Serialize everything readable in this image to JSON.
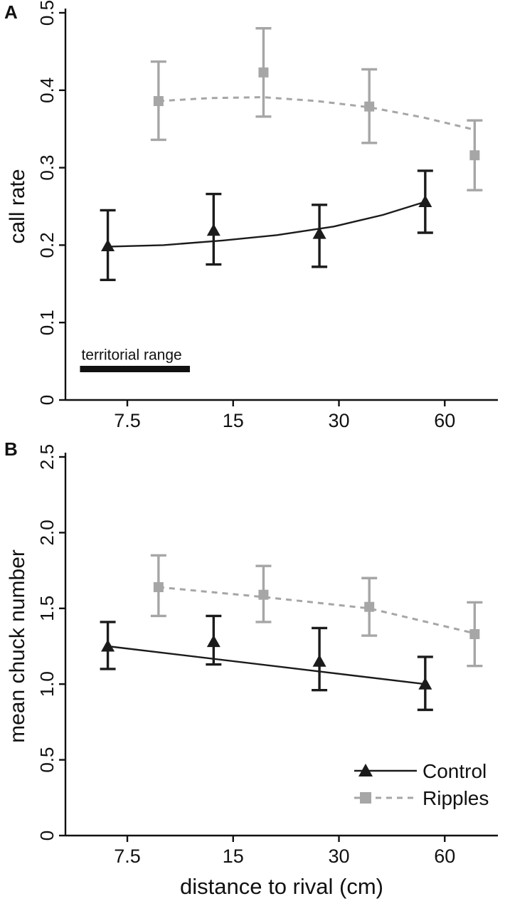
{
  "figure": {
    "panels": [
      {
        "letter": "A"
      },
      {
        "letter": "B"
      }
    ],
    "xlabel": "distance to rival (cm)",
    "colors": {
      "control": "#1b1b1b",
      "ripples": "#a6a6a6",
      "axis": "#111111"
    }
  },
  "chart_data": [
    {
      "type": "scatter",
      "panel": "A",
      "title": "",
      "xlabel": "distance to rival (cm)",
      "ylabel": "call rate",
      "x_scale": "log",
      "xlim": [
        5,
        85
      ],
      "xticks": [
        7.5,
        15,
        30,
        60
      ],
      "xtick_labels": [
        "7.5",
        "15",
        "30",
        "60"
      ],
      "ylim": [
        0,
        0.5
      ],
      "yticks": [
        0,
        0.1,
        0.2,
        0.3,
        0.4,
        0.5
      ],
      "ytick_labels": [
        "0",
        "0.1",
        "0.2",
        "0.3",
        "0.4",
        "0.5"
      ],
      "grid": false,
      "annotation": {
        "label": "territorial range",
        "x_start": 5.5,
        "x_end": 11.3,
        "y": 0.04
      },
      "series": [
        {
          "name": "Control",
          "marker": "triangle",
          "line_style": "solid",
          "color": "#1b1b1b",
          "x": [
            6.6,
            13.2,
            26.4,
            52.8
          ],
          "y": [
            0.199,
            0.219,
            0.215,
            0.256
          ],
          "err_lo": [
            0.155,
            0.175,
            0.172,
            0.216
          ],
          "err_hi": [
            0.245,
            0.266,
            0.252,
            0.296
          ],
          "trend": [
            [
              6.6,
              0.198
            ],
            [
              9.5,
              0.2
            ],
            [
              14,
              0.206
            ],
            [
              20,
              0.213
            ],
            [
              29,
              0.224
            ],
            [
              40,
              0.239
            ],
            [
              52.8,
              0.256
            ]
          ]
        },
        {
          "name": "Ripples",
          "marker": "square",
          "line_style": "dashed",
          "color": "#a6a6a6",
          "x": [
            9.2,
            18.3,
            36.6,
            73
          ],
          "y": [
            0.386,
            0.423,
            0.379,
            0.316
          ],
          "err_lo": [
            0.336,
            0.366,
            0.332,
            0.271
          ],
          "err_hi": [
            0.437,
            0.48,
            0.427,
            0.361
          ],
          "trend": [
            [
              9.2,
              0.386
            ],
            [
              13,
              0.39
            ],
            [
              18.3,
              0.391
            ],
            [
              26,
              0.386
            ],
            [
              36.6,
              0.378
            ],
            [
              52,
              0.365
            ],
            [
              73,
              0.349
            ]
          ]
        }
      ]
    },
    {
      "type": "scatter",
      "panel": "B",
      "title": "",
      "xlabel": "distance to rival (cm)",
      "ylabel": "mean chuck number",
      "x_scale": "log",
      "xlim": [
        5,
        85
      ],
      "xticks": [
        7.5,
        15,
        30,
        60
      ],
      "xtick_labels": [
        "7.5",
        "15",
        "30",
        "60"
      ],
      "ylim": [
        0,
        2.5
      ],
      "yticks": [
        0,
        0.5,
        1.0,
        1.5,
        2.0,
        2.5
      ],
      "ytick_labels": [
        "0",
        "0.5",
        "1.0",
        "1.5",
        "2.0",
        "2.5"
      ],
      "grid": false,
      "legend": {
        "show": true,
        "position": "bottom-right"
      },
      "series": [
        {
          "name": "Control",
          "marker": "triangle",
          "line_style": "solid",
          "color": "#1b1b1b",
          "x": [
            6.6,
            13.2,
            26.4,
            52.8
          ],
          "y": [
            1.25,
            1.28,
            1.15,
            1.0
          ],
          "err_lo": [
            1.1,
            1.13,
            0.96,
            0.83
          ],
          "err_hi": [
            1.41,
            1.45,
            1.37,
            1.18
          ],
          "trend": [
            [
              6.6,
              1.25
            ],
            [
              52.8,
              1.0
            ]
          ]
        },
        {
          "name": "Ripples",
          "marker": "square",
          "line_style": "dashed",
          "color": "#a6a6a6",
          "x": [
            9.2,
            18.3,
            36.6,
            73
          ],
          "y": [
            1.64,
            1.59,
            1.51,
            1.33
          ],
          "err_lo": [
            1.45,
            1.41,
            1.32,
            1.12
          ],
          "err_hi": [
            1.85,
            1.78,
            1.7,
            1.54
          ],
          "trend": [
            [
              9.2,
              1.64
            ],
            [
              18.3,
              1.575
            ],
            [
              36.6,
              1.5
            ],
            [
              73,
              1.335
            ]
          ]
        }
      ]
    }
  ]
}
